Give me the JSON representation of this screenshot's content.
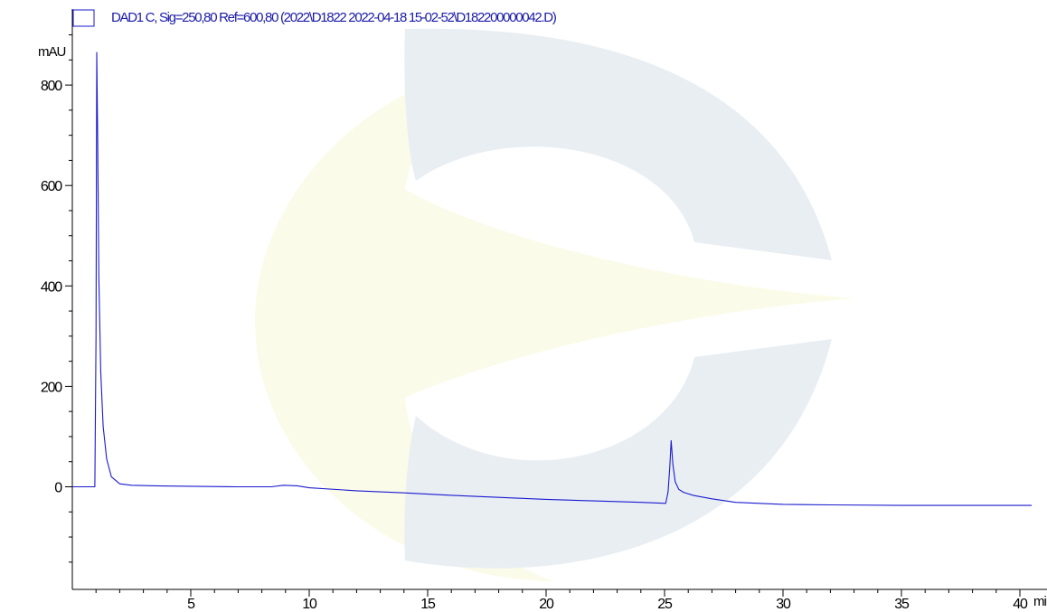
{
  "chart_data": {
    "type": "line",
    "title": "",
    "legend": {
      "placement": "top-left",
      "label": "DAD1 C, Sig=250,80 Ref=600,80 (2022\\D1822 2022-04-18 15-02-52\\D182200000042.D)"
    },
    "ylabel": "mAU",
    "xlabel": "min",
    "xlim": [
      0,
      40.5
    ],
    "ylim": [
      -180,
      910
    ],
    "x_ticks": [
      5,
      10,
      15,
      20,
      25,
      30,
      35,
      40
    ],
    "x_tick_labels": [
      "5",
      "10",
      "15",
      "20",
      "25",
      "30",
      "35",
      "40"
    ],
    "y_ticks": [
      0,
      200,
      400,
      600,
      800
    ],
    "y_tick_labels": [
      "0",
      "200",
      "400",
      "600",
      "800"
    ],
    "grid": false,
    "series": [
      {
        "name": "DAD1 C, Sig=250,80 Ref=600,80",
        "color": "#1a1ad0",
        "x": [
          0,
          0.95,
          1.0,
          1.03,
          1.07,
          1.12,
          1.2,
          1.3,
          1.45,
          1.65,
          2.0,
          2.5,
          3.5,
          5,
          7,
          8.4,
          8.9,
          9.5,
          10,
          12,
          14,
          16,
          18,
          20,
          22,
          24,
          25.05,
          25.15,
          25.22,
          25.28,
          25.35,
          25.45,
          25.6,
          25.8,
          26.2,
          27,
          28,
          29,
          30,
          32,
          35,
          38,
          40.5
        ],
        "y": [
          0,
          0,
          300,
          910,
          700,
          420,
          230,
          120,
          55,
          20,
          6,
          3,
          2,
          1,
          0,
          0,
          3,
          2,
          -2,
          -8,
          -12,
          -17,
          -21,
          -25,
          -28,
          -31,
          -33,
          -10,
          40,
          92,
          45,
          10,
          -5,
          -11,
          -17,
          -24,
          -31,
          -33,
          -35,
          -36,
          -37,
          -37,
          -37
        ]
      }
    ]
  },
  "colors": {
    "trace": "#1a1ad0",
    "legend_text": "#1a1aa8",
    "watermark_blue": "#e9eef3",
    "watermark_yellow": "#fafbe8"
  },
  "watermark": {
    "name": "company-logo-watermark"
  }
}
